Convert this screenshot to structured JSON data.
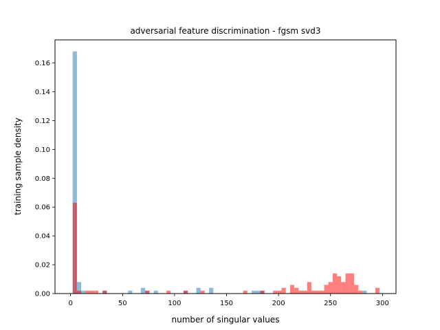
{
  "chart_data": {
    "type": "histogram",
    "title": "adversarial feature discrimination - fgsm svd3",
    "xlabel": "number of singular values",
    "ylabel": "training sample density",
    "xlim": [
      -15,
      313
    ],
    "ylim": [
      0,
      0.176
    ],
    "xticks": [
      0,
      50,
      100,
      150,
      200,
      250,
      300
    ],
    "yticks": [
      0.0,
      0.02,
      0.04,
      0.06,
      0.08,
      0.1,
      0.12,
      0.14,
      0.16
    ],
    "ytick_labels": [
      "0.00",
      "0.02",
      "0.04",
      "0.06",
      "0.08",
      "0.10",
      "0.12",
      "0.14",
      "0.16"
    ],
    "bin_width": 4.1,
    "series": [
      {
        "color": "#1f77b4",
        "alpha": 0.5,
        "bins": [
          [
            2,
            0.168
          ],
          [
            6.1,
            0.008
          ],
          [
            10.2,
            0.002
          ],
          [
            30.7,
            0.002
          ],
          [
            55.3,
            0.002
          ],
          [
            67.6,
            0.004
          ],
          [
            71.7,
            0.002
          ],
          [
            79.9,
            0.002
          ],
          [
            108.6,
            0.002
          ],
          [
            120.9,
            0.004
          ],
          [
            133.2,
            0.004
          ],
          [
            174.2,
            0.002
          ],
          [
            178.3,
            0.002
          ],
          [
            182.4,
            0.002
          ],
          [
            280.8,
            0.002
          ]
        ]
      },
      {
        "color": "#ff0000",
        "alpha": 0.5,
        "bins": [
          [
            2,
            0.063
          ],
          [
            6.1,
            0.002
          ],
          [
            14.3,
            0.002
          ],
          [
            18.4,
            0.002
          ],
          [
            22.5,
            0.002
          ],
          [
            30.7,
            0.002
          ],
          [
            71.7,
            0.002
          ],
          [
            92.2,
            0.002
          ],
          [
            108.6,
            0.002
          ],
          [
            124.9,
            0.002
          ],
          [
            165.9,
            0.002
          ],
          [
            182.4,
            0.002
          ],
          [
            194.7,
            0.002
          ],
          [
            198.8,
            0.002
          ],
          [
            202.9,
            0.004
          ],
          [
            211.1,
            0.006
          ],
          [
            215.2,
            0.004
          ],
          [
            219.3,
            0.002
          ],
          [
            223.4,
            0.002
          ],
          [
            227.5,
            0.008
          ],
          [
            231.6,
            0.002
          ],
          [
            235.7,
            0.002
          ],
          [
            239.8,
            0.002
          ],
          [
            243.9,
            0.006
          ],
          [
            248.0,
            0.008
          ],
          [
            252.1,
            0.014
          ],
          [
            256.2,
            0.012
          ],
          [
            260.3,
            0.008
          ],
          [
            264.4,
            0.014
          ],
          [
            268.5,
            0.014
          ],
          [
            272.6,
            0.006
          ],
          [
            276.7,
            0.002
          ],
          [
            293.1,
            0.004
          ]
        ]
      }
    ]
  }
}
